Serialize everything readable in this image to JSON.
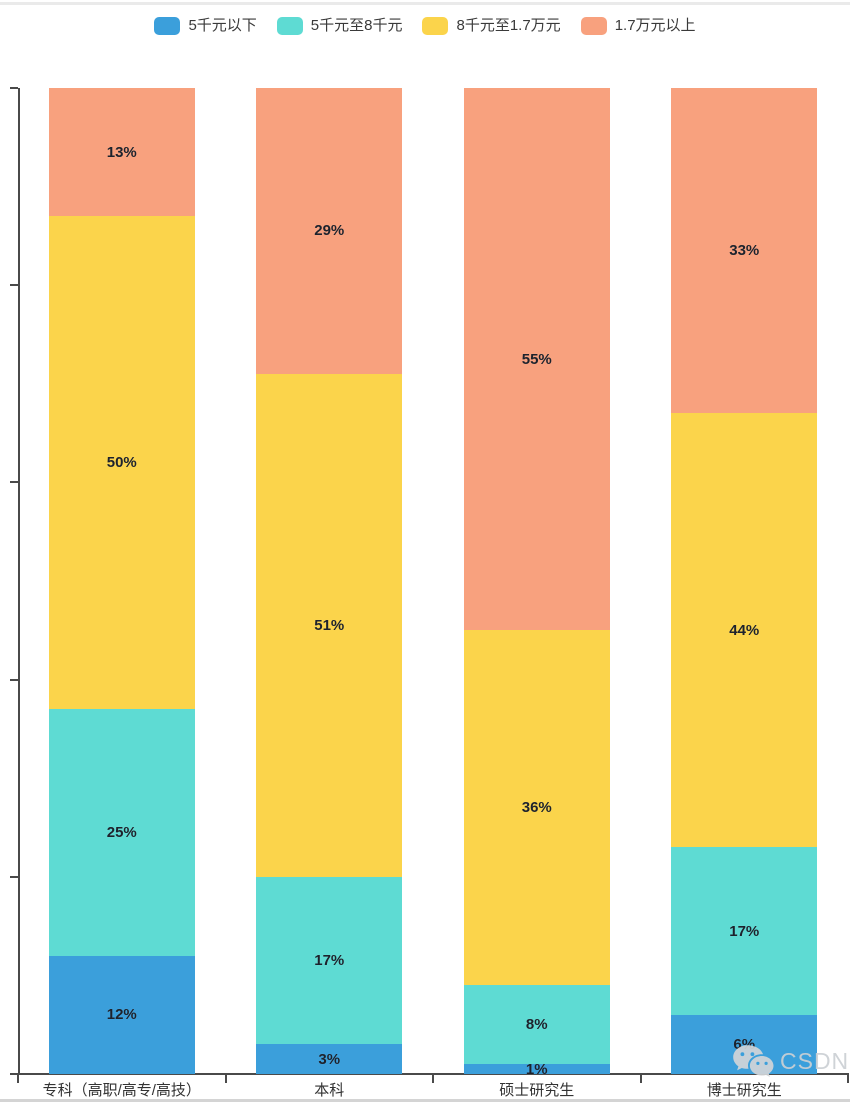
{
  "chart_data": {
    "type": "bar",
    "variant": "stacked-percentage-column",
    "title": "",
    "categories": [
      "专科（高职/高专/高技）",
      "本科",
      "硕士研究生",
      "博士研究生"
    ],
    "series": [
      {
        "name": "5千元以下",
        "color": "#3B9FDB",
        "values": [
          12,
          3,
          1,
          6
        ],
        "labels": [
          "12%",
          "3%",
          "1%",
          "6%"
        ]
      },
      {
        "name": "5千元至8千元",
        "color": "#5EDBD3",
        "values": [
          25,
          17,
          8,
          17
        ],
        "labels": [
          "25%",
          "17%",
          "8%",
          "17%"
        ]
      },
      {
        "name": "8千元至1.7万元",
        "color": "#FBD44B",
        "values": [
          50,
          51,
          36,
          44
        ],
        "labels": [
          "50%",
          "51%",
          "36%",
          "44%"
        ]
      },
      {
        "name": "1.7万元以上",
        "color": "#F8A17E",
        "values": [
          13,
          29,
          55,
          33
        ],
        "labels": [
          "13%",
          "29%",
          "55%",
          "33%"
        ]
      }
    ],
    "value_suffix": "%",
    "ylim": [
      0,
      100
    ],
    "y_ticks_percent": [
      0,
      20,
      40,
      60,
      80,
      100
    ],
    "y_tick_labels_visible": false,
    "grid": false,
    "legend_position": "top"
  },
  "watermark": {
    "text": "CSDN",
    "icon": "wechat-icon"
  },
  "colors": {
    "axis": "#4a4a4a",
    "segment_label": "#1d222c",
    "category_label": "#333333",
    "watermark_gray": "#ccd0d4"
  }
}
